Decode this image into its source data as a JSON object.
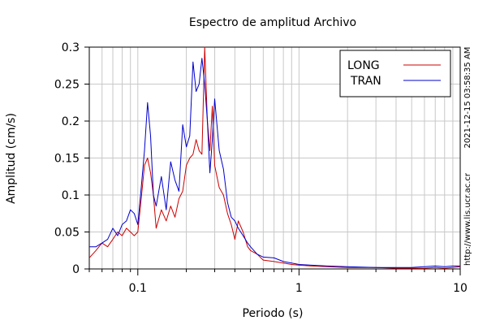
{
  "chart_data": {
    "type": "line",
    "title": "Espectro de amplitud Archivo",
    "xlabel": "Periodo (s)",
    "ylabel": "Amplitud (cm/s)",
    "x_scale": "log",
    "xlim": [
      0.05,
      10
    ],
    "ylim": [
      0,
      0.3
    ],
    "x_ticks": [
      0.1,
      1,
      10
    ],
    "x_tick_labels": [
      "0.1",
      "1",
      "10"
    ],
    "y_ticks": [
      0,
      0.05,
      0.1,
      0.15,
      0.2,
      0.25,
      0.3
    ],
    "y_tick_labels": [
      "0",
      "0.05",
      "0.1",
      "0.15",
      "0.2",
      "0.25",
      "0.3"
    ],
    "grid": true,
    "legend_position": "top-right",
    "timestamp": "2021-12-15 03:58:35 AM",
    "source_url": "http://www.lis.ucr.ac.cr",
    "series": [
      {
        "name": "LONG",
        "color": "#cc0000",
        "x": [
          0.05,
          0.055,
          0.06,
          0.065,
          0.07,
          0.075,
          0.08,
          0.085,
          0.09,
          0.095,
          0.1,
          0.105,
          0.11,
          0.115,
          0.12,
          0.125,
          0.13,
          0.14,
          0.15,
          0.16,
          0.17,
          0.18,
          0.19,
          0.2,
          0.21,
          0.22,
          0.23,
          0.24,
          0.25,
          0.26,
          0.27,
          0.28,
          0.29,
          0.3,
          0.32,
          0.34,
          0.36,
          0.38,
          0.4,
          0.42,
          0.45,
          0.48,
          0.5,
          0.55,
          0.6,
          0.7,
          0.8,
          0.9,
          1.0,
          1.2,
          1.5,
          2,
          3,
          4,
          5,
          6,
          7,
          8,
          9,
          10
        ],
        "y": [
          0.015,
          0.025,
          0.035,
          0.03,
          0.04,
          0.05,
          0.045,
          0.055,
          0.05,
          0.045,
          0.05,
          0.095,
          0.14,
          0.15,
          0.13,
          0.1,
          0.055,
          0.08,
          0.065,
          0.085,
          0.07,
          0.095,
          0.105,
          0.14,
          0.15,
          0.155,
          0.175,
          0.16,
          0.155,
          0.3,
          0.2,
          0.16,
          0.22,
          0.14,
          0.11,
          0.1,
          0.075,
          0.06,
          0.04,
          0.065,
          0.05,
          0.03,
          0.025,
          0.02,
          0.012,
          0.01,
          0.008,
          0.006,
          0.005,
          0.004,
          0.003,
          0.002,
          0.002,
          0.001,
          0.001,
          0.001,
          0.002,
          0.001,
          0.002,
          0.003
        ]
      },
      {
        "name": "TRAN",
        "color": "#0000cc",
        "x": [
          0.05,
          0.055,
          0.06,
          0.065,
          0.07,
          0.075,
          0.08,
          0.085,
          0.09,
          0.095,
          0.1,
          0.105,
          0.11,
          0.115,
          0.12,
          0.125,
          0.13,
          0.14,
          0.15,
          0.16,
          0.17,
          0.18,
          0.19,
          0.2,
          0.21,
          0.22,
          0.23,
          0.24,
          0.25,
          0.26,
          0.27,
          0.28,
          0.29,
          0.3,
          0.32,
          0.34,
          0.36,
          0.38,
          0.4,
          0.42,
          0.45,
          0.48,
          0.5,
          0.55,
          0.6,
          0.7,
          0.8,
          0.9,
          1.0,
          1.2,
          1.5,
          2,
          3,
          4,
          5,
          6,
          7,
          8,
          9,
          10
        ],
        "y": [
          0.03,
          0.03,
          0.035,
          0.04,
          0.055,
          0.045,
          0.06,
          0.065,
          0.08,
          0.075,
          0.06,
          0.11,
          0.16,
          0.225,
          0.18,
          0.1,
          0.085,
          0.125,
          0.08,
          0.145,
          0.12,
          0.105,
          0.195,
          0.165,
          0.18,
          0.28,
          0.24,
          0.25,
          0.285,
          0.25,
          0.2,
          0.13,
          0.175,
          0.23,
          0.16,
          0.135,
          0.09,
          0.07,
          0.065,
          0.055,
          0.045,
          0.035,
          0.03,
          0.02,
          0.016,
          0.015,
          0.01,
          0.008,
          0.006,
          0.005,
          0.004,
          0.003,
          0.002,
          0.002,
          0.002,
          0.003,
          0.004,
          0.003,
          0.004,
          0.004
        ]
      }
    ]
  }
}
